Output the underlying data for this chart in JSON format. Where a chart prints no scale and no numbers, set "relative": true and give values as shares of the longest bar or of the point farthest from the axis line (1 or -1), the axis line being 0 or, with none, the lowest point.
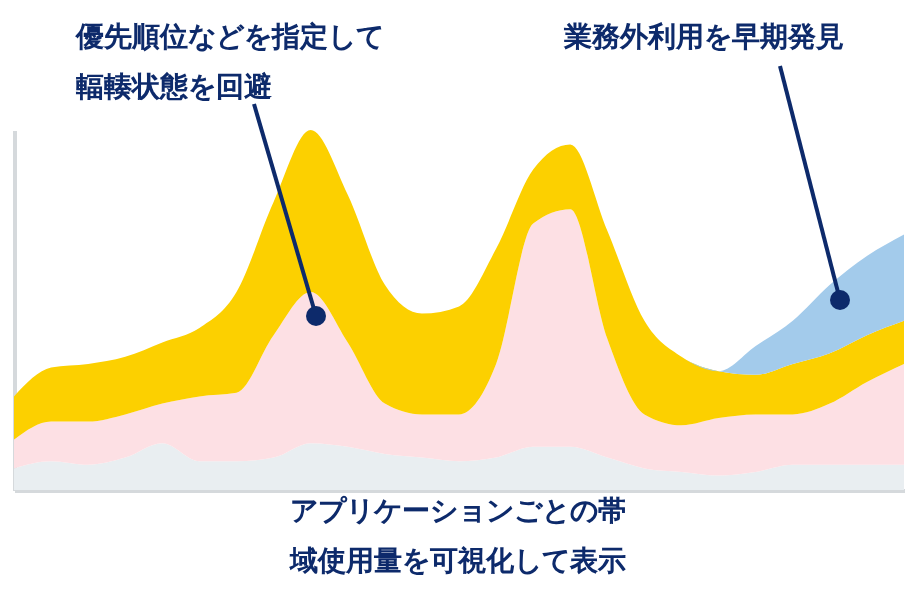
{
  "chart_data": {
    "type": "area",
    "stacked": true,
    "relative": true,
    "xlabel": "アプリケーションごとの帯域使用量を可視化して表示",
    "annotations": [
      "優先順位などを指定して輻輳状態を回避",
      "業務外利用を早期発見"
    ],
    "categories": [
      null,
      null,
      null,
      null,
      null,
      null,
      null,
      null,
      null,
      null,
      null,
      null,
      null,
      null,
      null,
      null,
      null,
      null,
      null,
      null,
      null,
      null,
      null,
      null,
      null
    ],
    "series": [
      {
        "color": "#e9eef1",
        "values": [
          0.06,
          0.08,
          0.07,
          0.09,
          0.13,
          0.08,
          0.08,
          0.09,
          0.13,
          0.12,
          0.1,
          0.09,
          0.08,
          0.09,
          0.12,
          0.12,
          0.09,
          0.06,
          0.05,
          0.04,
          0.05,
          0.07,
          0.07,
          0.07,
          0.07
        ]
      },
      {
        "color": "#fde0e4",
        "values": [
          0.08,
          0.11,
          0.12,
          0.12,
          0.11,
          0.18,
          0.19,
          0.34,
          0.42,
          0.29,
          0.14,
          0.12,
          0.13,
          0.26,
          0.62,
          0.66,
          0.33,
          0.15,
          0.13,
          0.16,
          0.16,
          0.14,
          0.17,
          0.23,
          0.28
        ]
      },
      {
        "color": "#fcd000",
        "values": [
          0.12,
          0.15,
          0.16,
          0.16,
          0.17,
          0.19,
          0.28,
          0.37,
          0.45,
          0.41,
          0.33,
          0.28,
          0.3,
          0.32,
          0.15,
          0.18,
          0.3,
          0.26,
          0.19,
          0.13,
          0.11,
          0.14,
          0.14,
          0.13,
          0.12
        ]
      },
      {
        "color": "#a3cbeb",
        "values": [
          0,
          0,
          0,
          0,
          0,
          0,
          0,
          0,
          0,
          0,
          0,
          0,
          0,
          0,
          0,
          0,
          0,
          0,
          0,
          0,
          0.08,
          0.12,
          0.19,
          0.22,
          0.24
        ]
      }
    ]
  }
}
